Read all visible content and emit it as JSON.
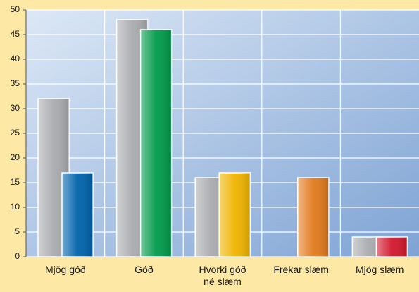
{
  "chart_data": {
    "type": "bar",
    "categories": [
      "Mjög góð",
      "Góð",
      "Hvorki góð\nné slæm",
      "Frekar slæm",
      "Mjög slæm"
    ],
    "series": [
      {
        "color": "#a9abae",
        "values": [
          32,
          48,
          16,
          null,
          4
        ]
      },
      {
        "colors": [
          "#0062aa",
          "#009a4a",
          "#f0b400",
          "#e27a1c",
          "#d2182c"
        ],
        "values": [
          17,
          46,
          17,
          16,
          4
        ]
      }
    ],
    "ylim": [
      0,
      50
    ],
    "yticks": [
      0,
      5,
      10,
      15,
      20,
      25,
      30,
      35,
      40,
      45,
      50
    ],
    "grid": true
  }
}
